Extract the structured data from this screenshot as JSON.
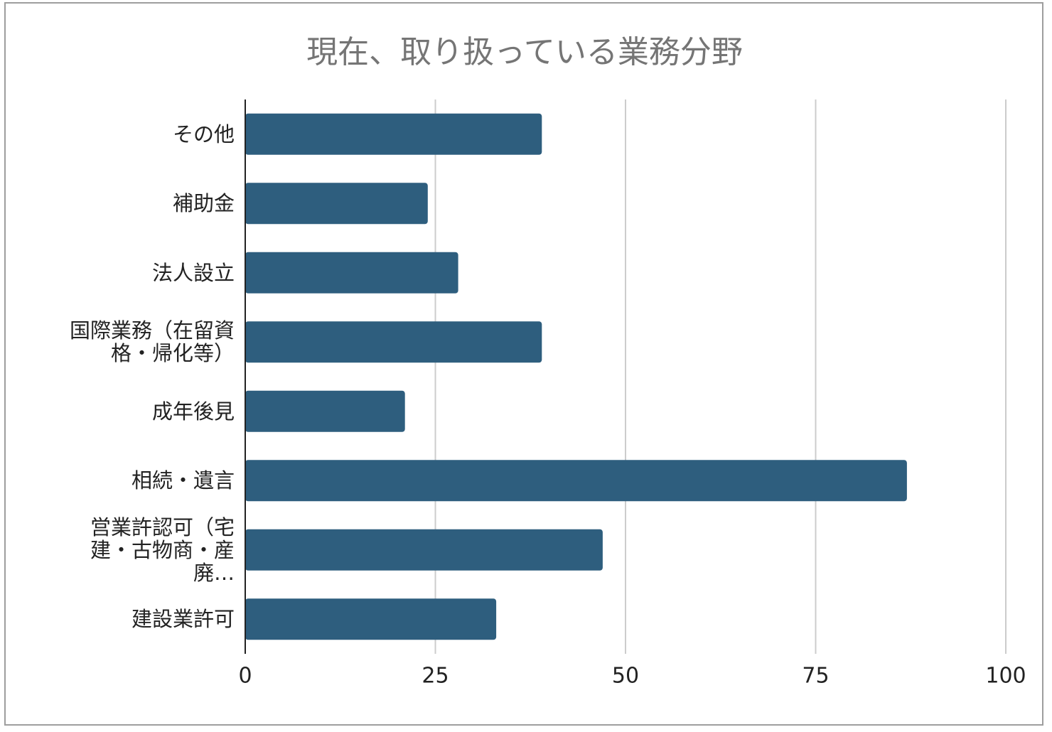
{
  "chart_data": {
    "type": "bar",
    "orientation": "horizontal",
    "title": "現在、取り扱っている業務分野",
    "categories": [
      "その他",
      "補助金",
      "法人設立",
      "国際業務（在留資格・帰化等）",
      "成年後見",
      "相続・遺言",
      "営業許認可（宅建・古物商・産廃…",
      "建設業許可"
    ],
    "values": [
      39,
      24,
      28,
      39,
      21,
      87,
      47,
      33
    ],
    "color": "#2e5e7e",
    "xlim": [
      0,
      100
    ],
    "xticks": [
      0,
      25,
      50,
      75,
      100
    ],
    "grid": true
  }
}
